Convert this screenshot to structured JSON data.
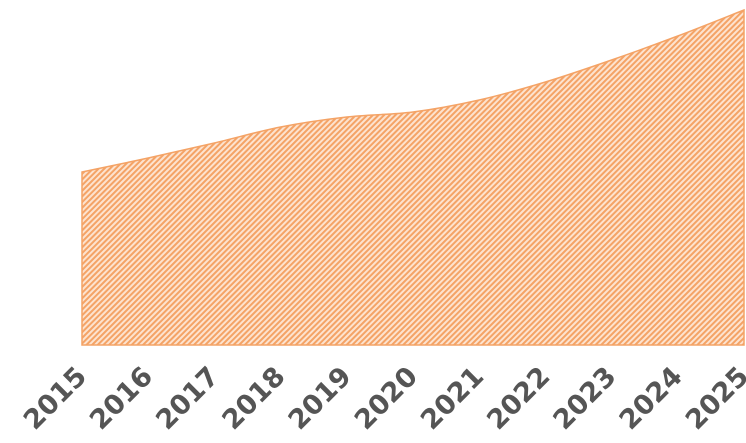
{
  "chart_data": {
    "type": "area",
    "categories": [
      "2015",
      "2016",
      "2017",
      "2018",
      "2019",
      "2020",
      "2021",
      "2022",
      "2023",
      "2024",
      "2025"
    ],
    "values": [
      173,
      187,
      202,
      218,
      228,
      233,
      245,
      263,
      285,
      309,
      335
    ],
    "color": "#f4a366",
    "ylim": [
      0,
      340
    ]
  }
}
